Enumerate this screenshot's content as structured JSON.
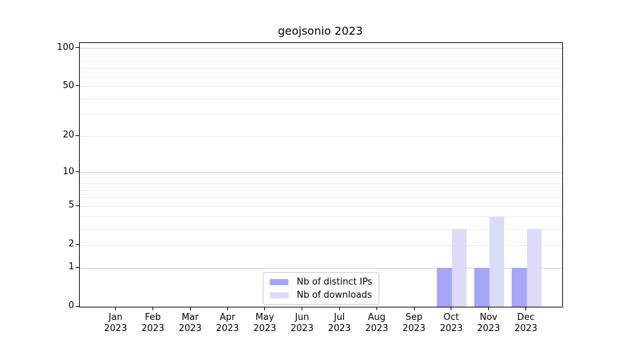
{
  "chart_data": {
    "type": "bar",
    "title": "geojsonio 2023",
    "categories": [
      "Jan 2023",
      "Feb 2023",
      "Mar 2023",
      "Apr 2023",
      "May 2023",
      "Jun 2023",
      "Jul 2023",
      "Aug 2023",
      "Sep 2023",
      "Oct 2023",
      "Nov 2023",
      "Dec 2023"
    ],
    "series": [
      {
        "name": "Nb of distinct IPs",
        "color": "#a6a6f8",
        "values": [
          0,
          0,
          0,
          0,
          0,
          0,
          0,
          0,
          0,
          1,
          1,
          1
        ]
      },
      {
        "name": "Nb of downloads",
        "color": "#dcdcf9",
        "values": [
          0,
          0,
          0,
          0,
          0,
          0,
          0,
          0,
          0,
          3,
          4,
          3
        ]
      }
    ],
    "xlabel": "",
    "ylabel": "",
    "y_axis": {
      "scale": "log1p",
      "ticks": [
        0,
        1,
        2,
        5,
        10,
        20,
        50,
        100
      ],
      "max": 110,
      "major_grid_values": [
        1,
        10,
        100
      ],
      "minor_grid_values": [
        2,
        3,
        4,
        5,
        6,
        7,
        8,
        9,
        20,
        30,
        40,
        50,
        60,
        70,
        80,
        90
      ]
    },
    "grid": "horizontal-only",
    "legend": {
      "position": "lower center",
      "entries": [
        "Nb of distinct IPs",
        "Nb of downloads"
      ]
    }
  }
}
